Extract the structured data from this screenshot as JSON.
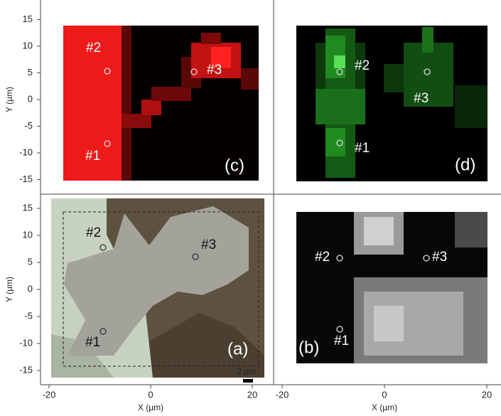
{
  "panels": {
    "c": {
      "label": "(c)",
      "points": [
        "#1",
        "#2",
        "#3"
      ]
    },
    "d": {
      "label": "(d)",
      "points": [
        "#1",
        "#2",
        "#3"
      ]
    },
    "a": {
      "label": "(a)",
      "points": [
        "#1",
        "#2",
        "#3"
      ],
      "scale_bar": "2 µm"
    },
    "b": {
      "label": "(b)",
      "points": [
        "#1",
        "#2",
        "#3"
      ]
    }
  },
  "axes": {
    "top_left_y": {
      "title": "Y (µm)",
      "ticks": [
        15,
        10,
        5,
        0,
        -5,
        -10,
        -15
      ]
    },
    "bottom_left_y": {
      "title": "Y (µm)",
      "ticks": [
        15,
        10,
        5,
        0,
        -5,
        -10,
        -15
      ]
    },
    "bottom_left_x": {
      "title": "X (µm)",
      "ticks": [
        -20,
        0,
        20
      ]
    },
    "bottom_right_x": {
      "title": "X (µm)",
      "ticks": [
        -20,
        0,
        20
      ]
    }
  }
}
